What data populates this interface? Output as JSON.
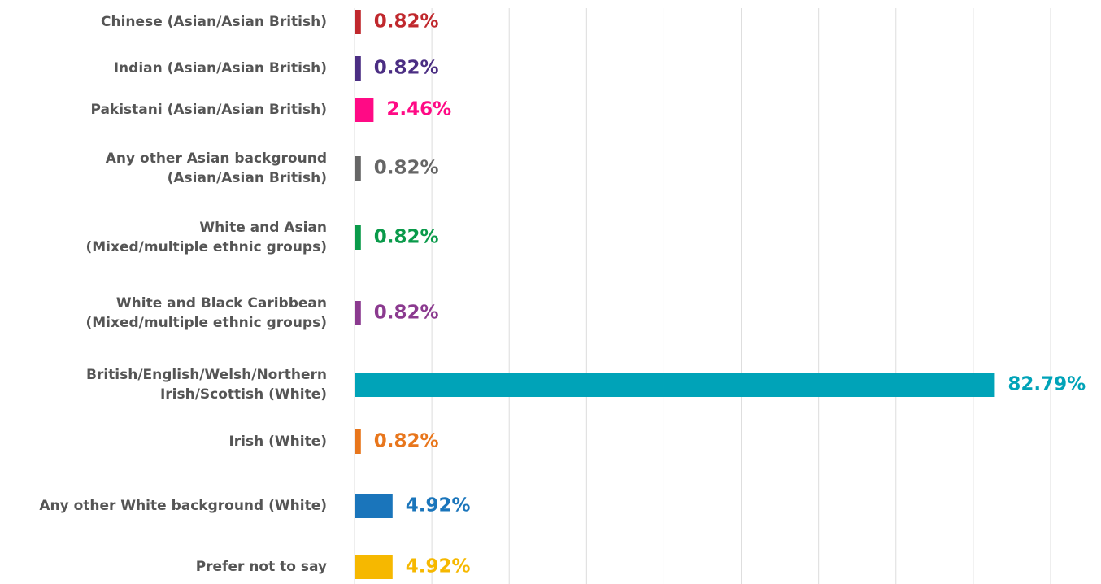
{
  "chart_data": {
    "type": "hbar",
    "categories": [
      "Chinese (Asian/Asian British)",
      "Indian (Asian/Asian British)",
      "Pakistani (Asian/Asian British)",
      "Any other Asian background\n(Asian/Asian British)",
      "White and Asian\n(Mixed/multiple ethnic groups)",
      "White and Black Caribbean\n(Mixed/multiple ethnic groups)",
      "British/English/Welsh/Northern\nIrish/Scottish (White)",
      "Irish (White)",
      "Any other White background  (White)",
      "Prefer not to say"
    ],
    "values": [
      0.82,
      0.82,
      2.46,
      0.82,
      0.82,
      0.82,
      82.79,
      0.82,
      4.92,
      4.92
    ],
    "value_labels": [
      "0.82%",
      "0.82%",
      "2.46%",
      "0.82%",
      "0.82%",
      "0.82%",
      "82.79%",
      "0.82%",
      "4.92%",
      "4.92%"
    ],
    "colors": [
      "#c0282d",
      "#4b2e83",
      "#ff0a85",
      "#666666",
      "#0a9a4a",
      "#8b3a8f",
      "#00a3b8",
      "#e8761c",
      "#1a75bb",
      "#f6b800"
    ],
    "xlim": [
      0,
      90
    ],
    "xticks": [
      0,
      10,
      20,
      30,
      40,
      50,
      60,
      70,
      80,
      90
    ],
    "grid": true
  }
}
